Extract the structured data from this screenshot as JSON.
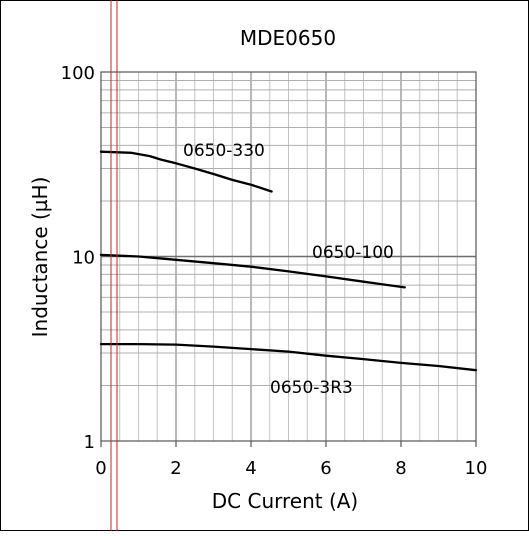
{
  "chart_data": {
    "type": "line",
    "title": "MDE0650",
    "xlabel": "DC Current (A)",
    "ylabel": "Inductance (µH)",
    "xlim": [
      0,
      10
    ],
    "ylim": [
      1,
      100
    ],
    "yscale": "log",
    "grid": true,
    "x_ticks": [
      0,
      2,
      4,
      6,
      8,
      10
    ],
    "x_tick_labels": [
      "0",
      "2",
      "4",
      "6",
      "8",
      "10"
    ],
    "y_ticks": [
      1,
      10,
      100
    ],
    "y_tick_labels": [
      "1",
      "10",
      "100"
    ],
    "series": [
      {
        "name": "0650-330",
        "x": [
          0,
          0.8,
          1.3,
          1.6,
          2.0,
          2.5,
          3.0,
          3.5,
          4.0,
          4.55
        ],
        "y": [
          37,
          36.5,
          35,
          33.5,
          32,
          30,
          28,
          26,
          24.5,
          22.5
        ]
      },
      {
        "name": "0650-100",
        "x": [
          0,
          1,
          2,
          3,
          4,
          5,
          6,
          7,
          8.1
        ],
        "y": [
          10.2,
          10,
          9.6,
          9.2,
          8.8,
          8.3,
          7.8,
          7.3,
          6.8
        ]
      },
      {
        "name": "0650-3R3",
        "x": [
          0,
          1,
          2,
          3,
          4,
          5,
          6,
          7,
          8,
          9,
          10
        ],
        "y": [
          3.35,
          3.35,
          3.33,
          3.25,
          3.15,
          3.05,
          2.9,
          2.78,
          2.65,
          2.55,
          2.42
        ]
      }
    ],
    "annotations": [
      "0650-330",
      "0650-100",
      "0650-3R3"
    ]
  }
}
